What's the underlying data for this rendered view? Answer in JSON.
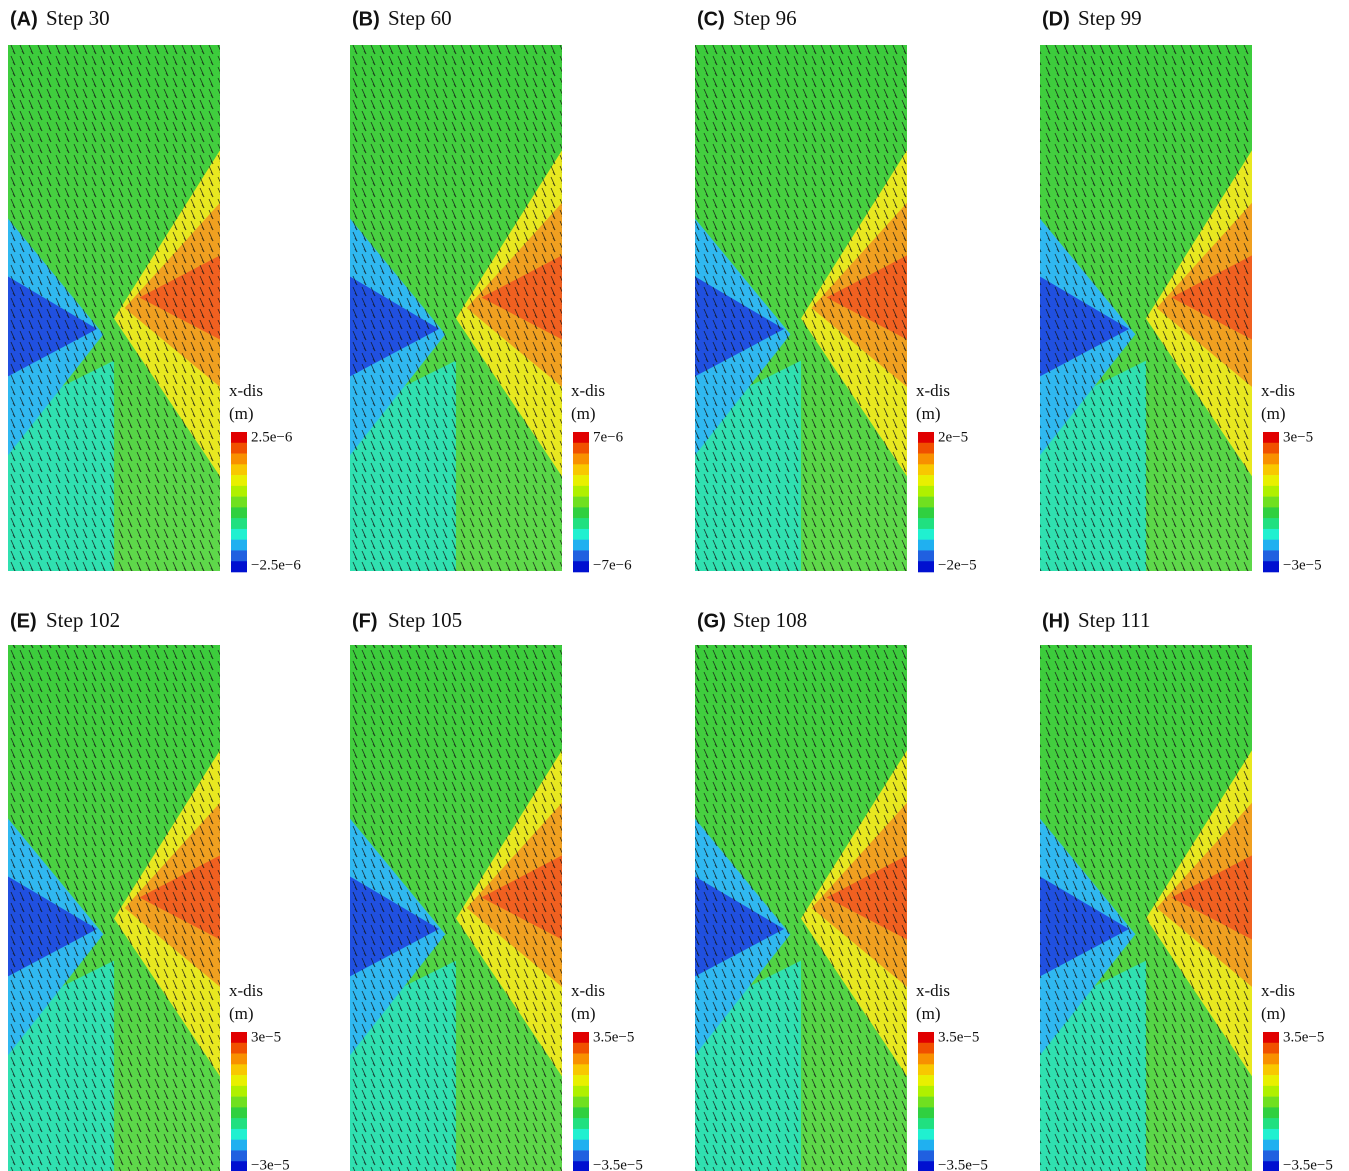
{
  "panels": [
    {
      "letter": "(A)",
      "title": "Step 30",
      "colorbar": {
        "label": "x-dis",
        "unit": "(m)",
        "max": "2.5e−6",
        "min": "−2.5e−6"
      }
    },
    {
      "letter": "(B)",
      "title": "Step 60",
      "colorbar": {
        "label": "x-dis",
        "unit": "(m)",
        "max": "7e−6",
        "min": "−7e−6"
      }
    },
    {
      "letter": "(C)",
      "title": "Step 96",
      "colorbar": {
        "label": "x-dis",
        "unit": "(m)",
        "max": "2e−5",
        "min": "−2e−5"
      }
    },
    {
      "letter": "(D)",
      "title": "Step 99",
      "colorbar": {
        "label": "x-dis",
        "unit": "(m)",
        "max": "3e−5",
        "min": "−3e−5"
      }
    },
    {
      "letter": "(E)",
      "title": "Step 102",
      "colorbar": {
        "label": "x-dis",
        "unit": "(m)",
        "max": "3e−5",
        "min": "−3e−5"
      }
    },
    {
      "letter": "(F)",
      "title": "Step 105",
      "colorbar": {
        "label": "x-dis",
        "unit": "(m)",
        "max": "3.5e−5",
        "min": "−3.5e−5"
      }
    },
    {
      "letter": "(G)",
      "title": "Step 108",
      "colorbar": {
        "label": "x-dis",
        "unit": "(m)",
        "max": "3.5e−5",
        "min": "−3.5e−5"
      }
    },
    {
      "letter": "(H)",
      "title": "Step 111",
      "colorbar": {
        "label": "x-dis",
        "unit": "(m)",
        "max": "3.5e−5",
        "min": "−3.5e−5"
      }
    }
  ]
}
